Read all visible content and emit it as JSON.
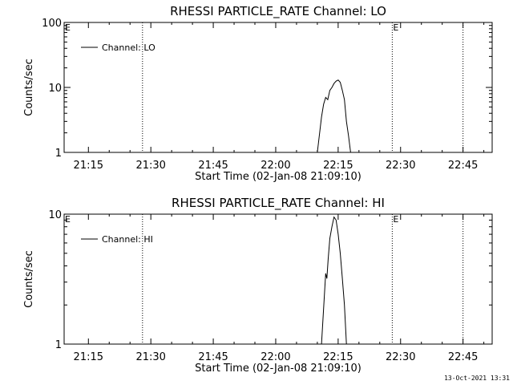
{
  "footer": {
    "date_stamp": "13-Oct-2021 13:31"
  },
  "chart_data": [
    {
      "type": "line",
      "title": "RHESSI PARTICLE_RATE Channel: LO",
      "xlabel": "Start Time (02-Jan-08 21:09:10)",
      "ylabel": "Counts/sec",
      "x_ticks": [
        "21:15",
        "21:30",
        "21:45",
        "22:00",
        "22:15",
        "22:30",
        "22:45"
      ],
      "y_ticks": [
        "1",
        "10",
        "100"
      ],
      "y_scale": "log",
      "ylim": [
        1,
        100
      ],
      "legend": {
        "label": "Channel: LO",
        "placement": "top-left"
      },
      "event_markers": [
        {
          "time": "21:28",
          "label": ""
        },
        {
          "time": "22:28",
          "label": "E"
        },
        {
          "time": "22:45",
          "label": ""
        }
      ],
      "left_marker_label": "E",
      "series": [
        {
          "values": [
            [
              "22:10",
              1
            ],
            [
              "22:11",
              3.5
            ],
            [
              "22:11.5",
              5.5
            ],
            [
              "22:12",
              7
            ],
            [
              "22:12.5",
              6.5
            ],
            [
              "22:13",
              9
            ],
            [
              "22:13.5",
              10
            ],
            [
              "22:14",
              11.5
            ],
            [
              "22:14.5",
              12.5
            ],
            [
              "22:15",
              13
            ],
            [
              "22:15.5",
              12
            ],
            [
              "22:16",
              9
            ],
            [
              "22:16.5",
              6.5
            ],
            [
              "22:17",
              3
            ],
            [
              "22:17.5",
              1.8
            ],
            [
              "22:18",
              1
            ]
          ]
        }
      ]
    },
    {
      "type": "line",
      "title": "RHESSI PARTICLE_RATE Channel: HI",
      "xlabel": "Start Time (02-Jan-08 21:09:10)",
      "ylabel": "Counts/sec",
      "x_ticks": [
        "21:15",
        "21:30",
        "21:45",
        "22:00",
        "22:15",
        "22:30",
        "22:45"
      ],
      "y_ticks": [
        "1",
        "10"
      ],
      "y_scale": "log",
      "ylim": [
        1,
        10
      ],
      "legend": {
        "label": "Channel: HI",
        "placement": "top-left"
      },
      "event_markers": [
        {
          "time": "21:28",
          "label": ""
        },
        {
          "time": "22:28",
          "label": "E"
        },
        {
          "time": "22:45",
          "label": ""
        }
      ],
      "left_marker_label": "E",
      "series": [
        {
          "values": [
            [
              "22:11",
              1
            ],
            [
              "22:12",
              3.5
            ],
            [
              "22:12.3",
              3.2
            ],
            [
              "22:12.6",
              4.5
            ],
            [
              "22:13",
              6.5
            ],
            [
              "22:13.5",
              8
            ],
            [
              "22:14",
              9.5
            ],
            [
              "22:14.5",
              9
            ],
            [
              "22:15",
              7
            ],
            [
              "22:15.5",
              5
            ],
            [
              "22:16",
              3.2
            ],
            [
              "22:16.5",
              2
            ],
            [
              "22:17",
              1
            ]
          ]
        }
      ]
    }
  ]
}
